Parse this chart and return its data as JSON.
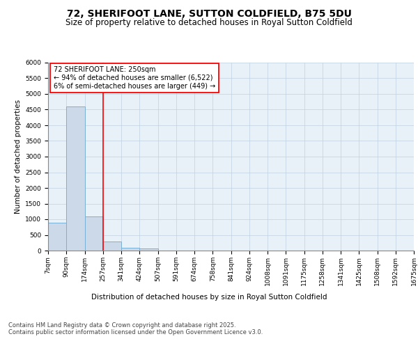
{
  "title": "72, SHERIFOOT LANE, SUTTON COLDFIELD, B75 5DU",
  "subtitle": "Size of property relative to detached houses in Royal Sutton Coldfield",
  "xlabel": "Distribution of detached houses by size in Royal Sutton Coldfield",
  "ylabel": "Number of detached properties",
  "bar_color": "#ccd9e8",
  "bar_edge_color": "#7aafd4",
  "grid_color": "#c0cfe0",
  "background_color": "#e8f0f8",
  "bins": [
    "7sqm",
    "90sqm",
    "174sqm",
    "257sqm",
    "341sqm",
    "424sqm",
    "507sqm",
    "591sqm",
    "674sqm",
    "758sqm",
    "841sqm",
    "924sqm",
    "1008sqm",
    "1091sqm",
    "1175sqm",
    "1258sqm",
    "1341sqm",
    "1425sqm",
    "1508sqm",
    "1592sqm",
    "1675sqm"
  ],
  "values": [
    900,
    4600,
    1080,
    300,
    100,
    70,
    0,
    0,
    0,
    0,
    0,
    0,
    0,
    0,
    0,
    0,
    0,
    0,
    0,
    0
  ],
  "red_line_x": 3,
  "annotation_text": "72 SHERIFOOT LANE: 250sqm\n← 94% of detached houses are smaller (6,522)\n6% of semi-detached houses are larger (449) →",
  "ylim": [
    0,
    6000
  ],
  "yticks": [
    0,
    500,
    1000,
    1500,
    2000,
    2500,
    3000,
    3500,
    4000,
    4500,
    5000,
    5500,
    6000
  ],
  "footer": "Contains HM Land Registry data © Crown copyright and database right 2025.\nContains public sector information licensed under the Open Government Licence v3.0.",
  "title_fontsize": 10,
  "subtitle_fontsize": 8.5,
  "xlabel_fontsize": 7.5,
  "ylabel_fontsize": 7.5,
  "tick_fontsize": 6.5,
  "annotation_fontsize": 7,
  "footer_fontsize": 6
}
